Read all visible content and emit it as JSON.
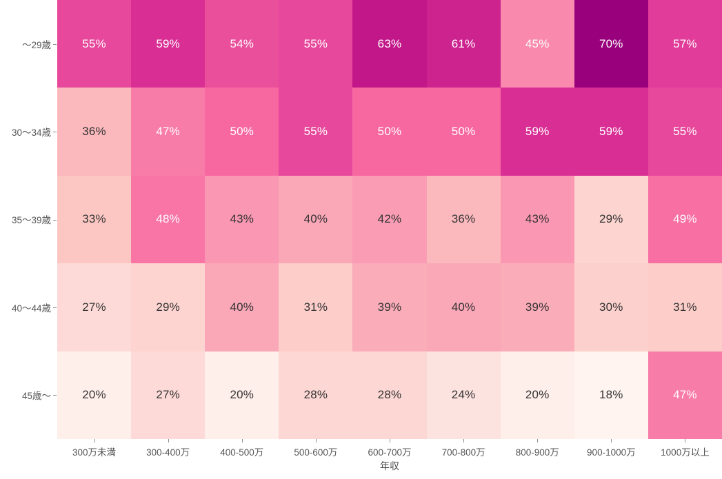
{
  "chart_data": {
    "type": "heatmap",
    "title": "",
    "xlabel": "年収",
    "ylabel": "",
    "x_categories": [
      "300万未満",
      "300-400万",
      "400-500万",
      "500-600万",
      "600-700万",
      "700-800万",
      "800-900万",
      "900-1000万",
      "1000万以上"
    ],
    "y_categories": [
      "〜29歳",
      "30〜34歳",
      "35〜39歳",
      "40〜44歳",
      "45歳〜"
    ],
    "values": [
      [
        55,
        59,
        54,
        55,
        63,
        61,
        45,
        70,
        57
      ],
      [
        36,
        47,
        50,
        55,
        50,
        50,
        59,
        59,
        55
      ],
      [
        33,
        48,
        43,
        40,
        42,
        36,
        43,
        29,
        49
      ],
      [
        27,
        29,
        40,
        31,
        39,
        40,
        39,
        30,
        31
      ],
      [
        20,
        27,
        20,
        28,
        28,
        24,
        20,
        18,
        47
      ]
    ],
    "value_suffix": "%",
    "zmin": 17,
    "zmax": 83,
    "colorscale": {
      "name": "RdPu",
      "stops": [
        [
          0.0,
          "#fff7f3"
        ],
        [
          0.125,
          "#fde0dd"
        ],
        [
          0.25,
          "#fcc5c0"
        ],
        [
          0.375,
          "#fa9fb5"
        ],
        [
          0.5,
          "#f768a1"
        ],
        [
          0.625,
          "#dd3497"
        ],
        [
          0.75,
          "#ae017e"
        ],
        [
          0.875,
          "#7a0177"
        ],
        [
          1.0,
          "#49006a"
        ]
      ]
    },
    "cell_text": {
      "dark_text_color": "#333333",
      "light_text_color": "#ffffff",
      "white_text_min_value": 44
    },
    "axis_style": {
      "tick_mark_color": "#8c8c8c",
      "tick_label_color": "#565656",
      "title_color": "#4a4a4a"
    },
    "legend": "none",
    "grid": "off"
  }
}
